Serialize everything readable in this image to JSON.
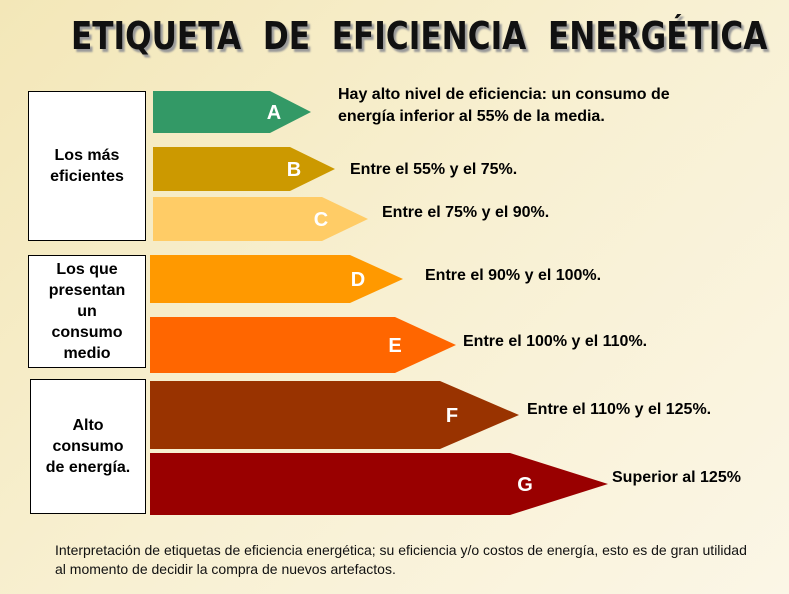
{
  "header": {
    "title": "ETIQUETA  DE  EFICIENCIA  ENERGÉTICA"
  },
  "groups": [
    {
      "label": "Los más eficientes"
    },
    {
      "label": "Los que presentan un consumo medio"
    },
    {
      "label": "Alto consumo de energía."
    }
  ],
  "rows": [
    {
      "letter": "A",
      "description": "Hay alto nivel de eficiencia: un consumo de energía inferior al 55% de la media.",
      "color": "#339966"
    },
    {
      "letter": "B",
      "description": "Entre el 55% y el 75%.",
      "color": "#cc9900"
    },
    {
      "letter": "C",
      "description": "Entre el 75% y el 90%.",
      "color": "#ffcc66"
    },
    {
      "letter": "D",
      "description": "Entre el 90% y el 100%.",
      "color": "#ff9900"
    },
    {
      "letter": "E",
      "description": "Entre el 100% y el 110%.",
      "color": "#ff6600"
    },
    {
      "letter": "F",
      "description": "Entre el 110% y el 125%.",
      "color": "#993300"
    },
    {
      "letter": "G",
      "description": "Superior al 125%",
      "color": "#990000"
    }
  ],
  "caption": "Interpretación de etiquetas de eficiencia energética; su eficiencia y/o costos de energía, esto es de gran utilidad al momento de decidir la compra de nuevos artefactos."
}
